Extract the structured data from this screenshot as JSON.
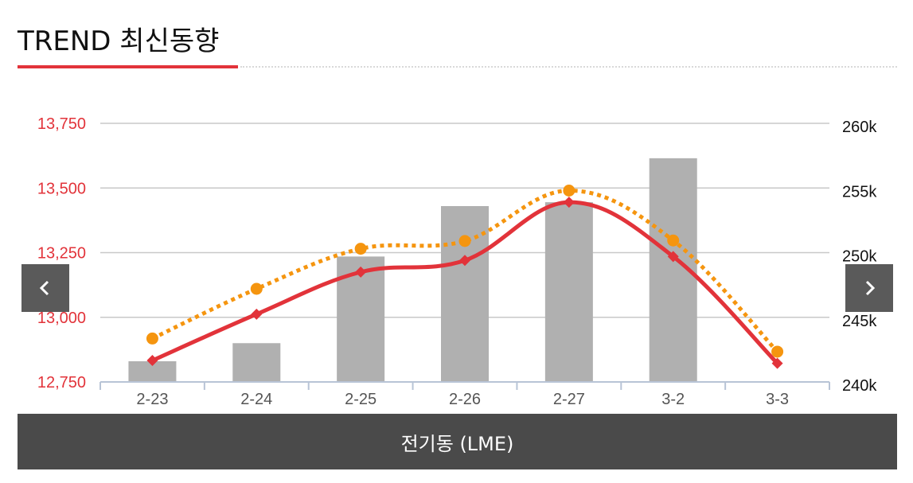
{
  "header": {
    "title": "TREND 최신동향"
  },
  "footer": {
    "label": "전기동 (LME)"
  },
  "colors": {
    "accent": "#e2333a",
    "bars": "#b0b0b0",
    "dotted_line": "#f5950f",
    "grid": "#c8c8c8"
  },
  "nav": {
    "prev_icon": "chevron-left-icon",
    "next_icon": "chevron-right-icon"
  },
  "chart_data": {
    "type": "bar",
    "categories": [
      "2-23",
      "2-24",
      "2-25",
      "2-26",
      "2-27",
      "3-2",
      "3-3"
    ],
    "left_axis": {
      "ylim": [
        12750,
        13750
      ],
      "ticks": [
        12750,
        13000,
        13250,
        13500,
        13750
      ],
      "tick_labels": [
        "12,750",
        "13,000",
        "13,250",
        "13,500",
        "13,750"
      ]
    },
    "right_axis": {
      "ylim": [
        240000,
        260000
      ],
      "ticks": [
        240000,
        245000,
        250000,
        255000,
        260000
      ],
      "tick_labels": [
        "240k",
        "245k",
        "250k",
        "255k",
        "260k"
      ]
    },
    "series": [
      {
        "type": "bar",
        "axis": "right",
        "values": [
          241600,
          243000,
          249700,
          253600,
          253900,
          257300,
          240000
        ]
      },
      {
        "type": "line",
        "style": "dotted",
        "marker": "circle",
        "axis": "left",
        "values": [
          12918,
          13110,
          13265,
          13295,
          13490,
          13297,
          12867
        ]
      },
      {
        "type": "line",
        "style": "solid",
        "marker": "diamond",
        "axis": "left",
        "values": [
          12833,
          13012,
          13175,
          13220,
          13445,
          13235,
          12822
        ]
      }
    ],
    "grid": true,
    "legend": "none"
  }
}
